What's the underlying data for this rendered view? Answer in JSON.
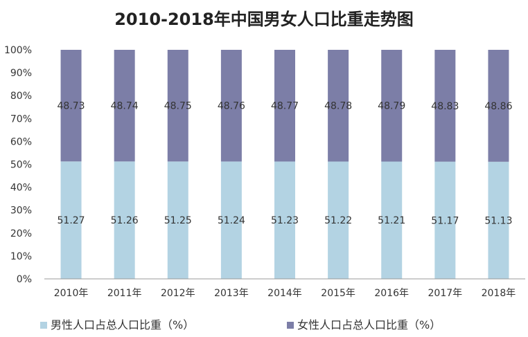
{
  "chart_data": {
    "type": "bar",
    "stacked": true,
    "normalized_percent": true,
    "title": "2010-2018年中国男女人口比重走势图",
    "categories": [
      "2010年",
      "2011年",
      "2012年",
      "2013年",
      "2014年",
      "2015年",
      "2016年",
      "2017年",
      "2018年"
    ],
    "series": [
      {
        "name": "男性人口占总人口比重（%）",
        "color": "#b3d3e3",
        "values": [
          51.27,
          51.26,
          51.25,
          51.24,
          51.23,
          51.22,
          51.21,
          51.17,
          51.13
        ]
      },
      {
        "name": "女性人口占总人口比重（%）",
        "color": "#7c7ea7",
        "values": [
          48.73,
          48.74,
          48.75,
          48.76,
          48.77,
          48.78,
          48.79,
          48.83,
          48.86
        ]
      }
    ],
    "yticks": [
      "0%",
      "10%",
      "20%",
      "30%",
      "40%",
      "50%",
      "60%",
      "70%",
      "80%",
      "90%",
      "100%"
    ],
    "ylim": [
      0,
      100
    ],
    "grid": false,
    "legend_position": "bottom"
  }
}
